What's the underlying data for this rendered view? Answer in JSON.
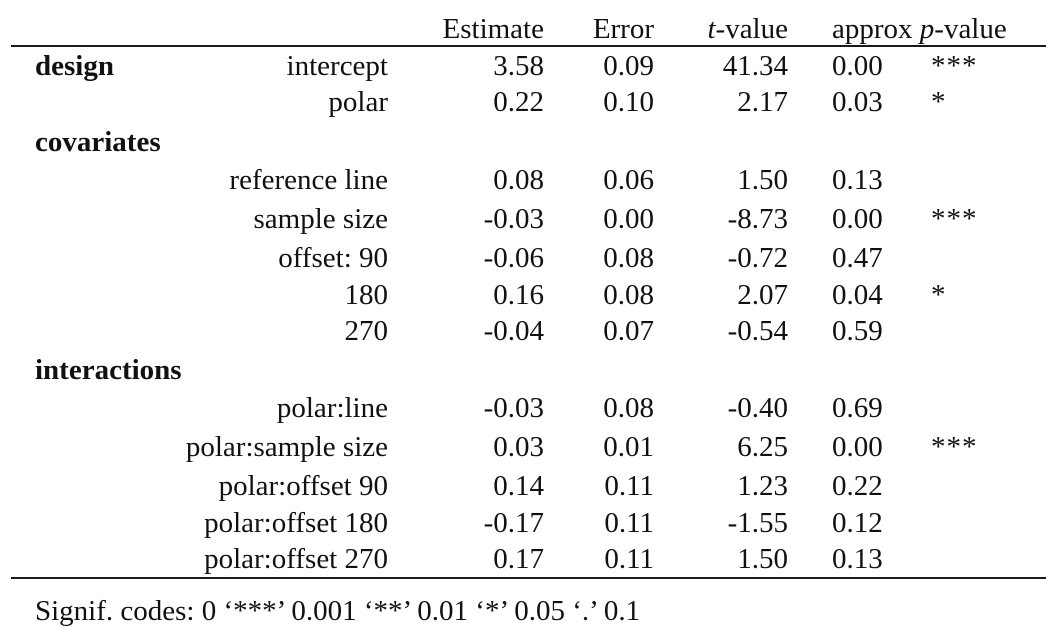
{
  "columns": {
    "estimate": "Estimate",
    "error": "Error",
    "tvalue_italic": "t",
    "tvalue_rest": "-value",
    "approx": "approx ",
    "pvalue_italic": "p",
    "pvalue_rest": "-value"
  },
  "sections": [
    {
      "title": "design",
      "rows": [
        {
          "label": "intercept",
          "estimate": "3.58",
          "error": "0.09",
          "t": "41.34",
          "p": "0.00",
          "sig": "***"
        },
        {
          "label": "polar",
          "estimate": "0.22",
          "error": "0.10",
          "t": "2.17",
          "p": "0.03",
          "sig": "*"
        }
      ]
    },
    {
      "title": "covariates",
      "rows": [
        {
          "label": "reference line",
          "estimate": "0.08",
          "error": "0.06",
          "t": "1.50",
          "p": "0.13",
          "sig": ""
        },
        {
          "label": "sample size",
          "estimate": "-0.03",
          "error": "0.00",
          "t": "-8.73",
          "p": "0.00",
          "sig": "***"
        },
        {
          "label": "offset: 90",
          "estimate": "-0.06",
          "error": "0.08",
          "t": "-0.72",
          "p": "0.47",
          "sig": ""
        },
        {
          "label": "180",
          "estimate": "0.16",
          "error": "0.08",
          "t": "2.07",
          "p": "0.04",
          "sig": "*"
        },
        {
          "label": "270",
          "estimate": "-0.04",
          "error": "0.07",
          "t": "-0.54",
          "p": "0.59",
          "sig": ""
        }
      ]
    },
    {
      "title": "interactions",
      "rows": [
        {
          "label": "polar:line",
          "estimate": "-0.03",
          "error": "0.08",
          "t": "-0.40",
          "p": "0.69",
          "sig": ""
        },
        {
          "label": "polar:sample size",
          "estimate": "0.03",
          "error": "0.01",
          "t": "6.25",
          "p": "0.00",
          "sig": "***"
        },
        {
          "label": "polar:offset 90",
          "estimate": "0.14",
          "error": "0.11",
          "t": "1.23",
          "p": "0.22",
          "sig": ""
        },
        {
          "label": "polar:offset 180",
          "estimate": "-0.17",
          "error": "0.11",
          "t": "-1.55",
          "p": "0.12",
          "sig": ""
        },
        {
          "label": "polar:offset 270",
          "estimate": "0.17",
          "error": "0.11",
          "t": "1.50",
          "p": "0.13",
          "sig": ""
        }
      ]
    }
  ],
  "footer": "Signif. codes: 0 ‘***’ 0.001 ‘**’ 0.01 ‘*’ 0.05 ‘.’ 0.1"
}
